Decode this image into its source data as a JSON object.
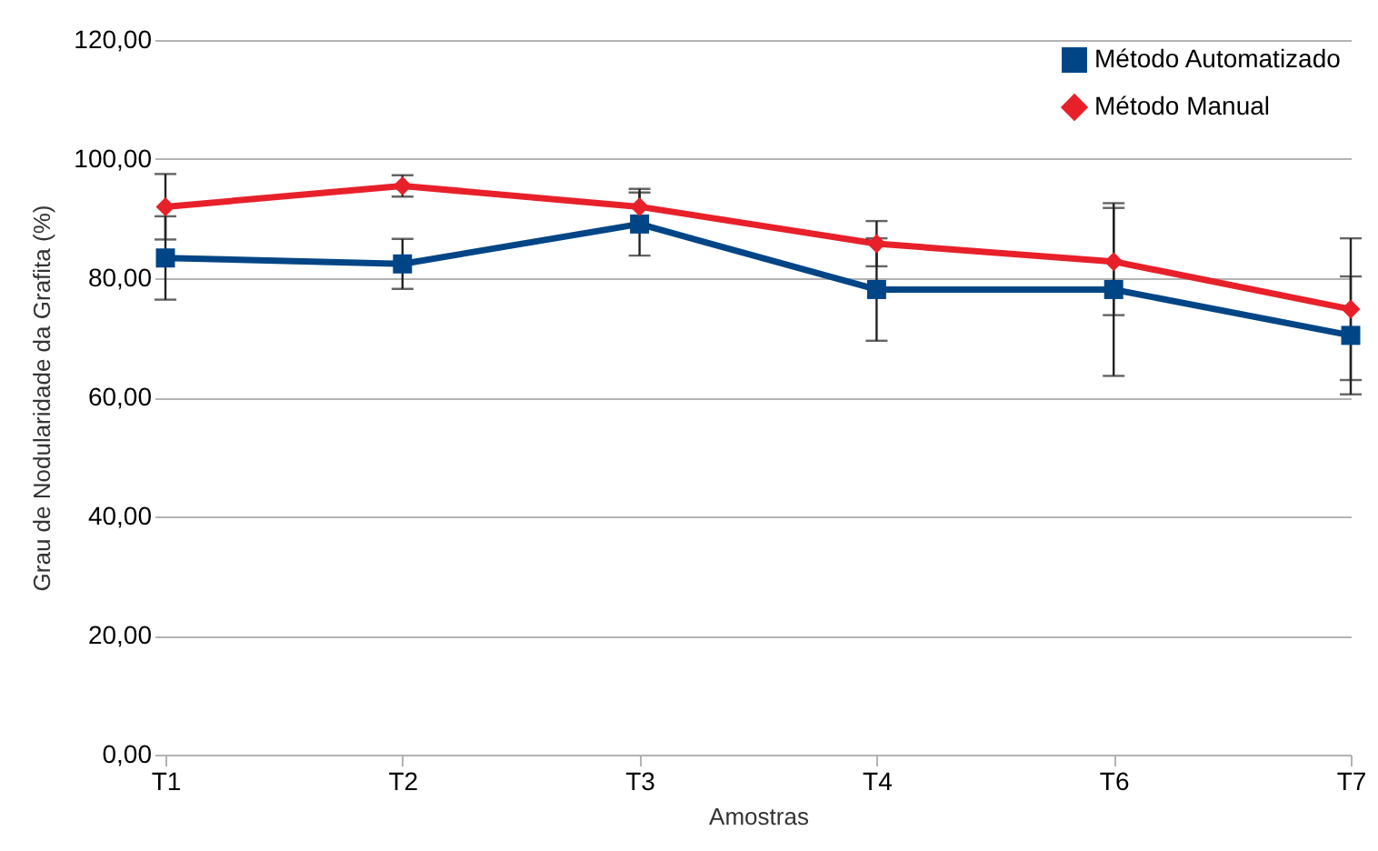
{
  "chart_data": {
    "type": "line",
    "xlabel": "Amostras",
    "ylabel": "Grau de Nodularidade da Grafita (%)",
    "categories": [
      "T1",
      "T2",
      "T3",
      "T4",
      "T6",
      "T7"
    ],
    "series": [
      {
        "name": "Método Automatizado",
        "color": "#004586",
        "marker": "square",
        "values": [
          83.4,
          82.4,
          89.1,
          78.1,
          78.1,
          70.4
        ],
        "errors": [
          7.0,
          4.2,
          5.3,
          8.6,
          14.5,
          9.9
        ]
      },
      {
        "name": "Método Manual",
        "color": "#e8202a",
        "marker": "diamond",
        "values": [
          92.0,
          95.5,
          92.0,
          85.8,
          82.8,
          74.8
        ],
        "errors": [
          5.5,
          1.8,
          3.0,
          3.8,
          9.0,
          11.9
        ]
      }
    ],
    "ylim": [
      0,
      120
    ],
    "yticks": [
      {
        "value": 0,
        "label": "0,00"
      },
      {
        "value": 20,
        "label": "20,00"
      },
      {
        "value": 40,
        "label": "40,00"
      },
      {
        "value": 60,
        "label": "60,00"
      },
      {
        "value": 80,
        "label": "80,00"
      },
      {
        "value": 100,
        "label": "100,00"
      },
      {
        "value": 120,
        "label": "120,00"
      }
    ],
    "grid": "y",
    "legend": "top right",
    "line_style": "solid"
  }
}
